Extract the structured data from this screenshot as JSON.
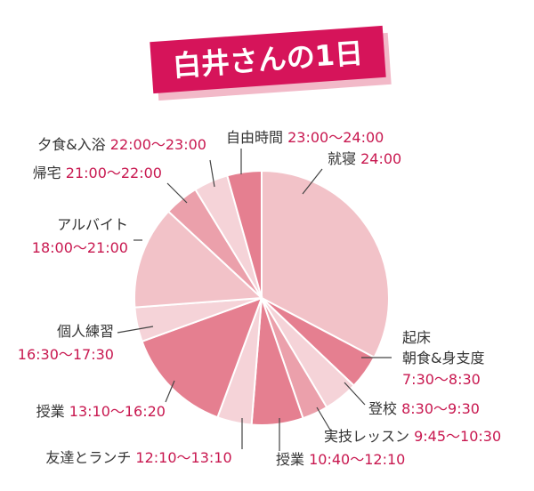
{
  "title": "白井さんの1日",
  "colors": {
    "title_bg": "#d6145a",
    "title_shadow": "#f2b9c8",
    "title_text": "#ffffff",
    "label_text": "#333333",
    "time_text": "#c8174f",
    "leader": "#444444",
    "slice_border": "#ffffff"
  },
  "chart_data": {
    "type": "pie",
    "unit": "hours",
    "slices": [
      {
        "name": "就寝",
        "time": "24:00",
        "value": 7.5,
        "color": "#f2c2c8"
      },
      {
        "name": "起床\n朝食&身支度",
        "time": "7:30〜8:30",
        "value": 1.0,
        "color": "#e57f90"
      },
      {
        "name": "登校",
        "time": "8:30〜9:30",
        "value": 1.0,
        "color": "#f5d3d8"
      },
      {
        "name": "実技レッスン",
        "time": "9:45〜10:30",
        "value": 0.75,
        "color": "#eba0ab"
      },
      {
        "name": "授業",
        "time": "10:40〜12:10",
        "value": 1.5,
        "color": "#e57f90"
      },
      {
        "name": "友達とランチ",
        "time": "12:10〜13:10",
        "value": 1.0,
        "color": "#f5d3d8"
      },
      {
        "name": "授業",
        "time": "13:10〜16:20",
        "value": 3.1667,
        "color": "#e57f90"
      },
      {
        "name": "個人練習",
        "time": "16:30〜17:30",
        "value": 1.0,
        "color": "#f5d3d8"
      },
      {
        "name": "アルバイト",
        "time": "18:00〜21:00",
        "value": 3.0,
        "color": "#f2c2c8"
      },
      {
        "name": "帰宅",
        "time": "21:00〜22:00",
        "value": 1.0,
        "color": "#eba0ab"
      },
      {
        "name": "夕食&入浴",
        "time": "22:00〜23:00",
        "value": 1.0,
        "color": "#f5d3d8"
      },
      {
        "name": "自由時間",
        "time": "23:00〜24:00",
        "value": 1.0,
        "color": "#e57f90"
      }
    ]
  }
}
